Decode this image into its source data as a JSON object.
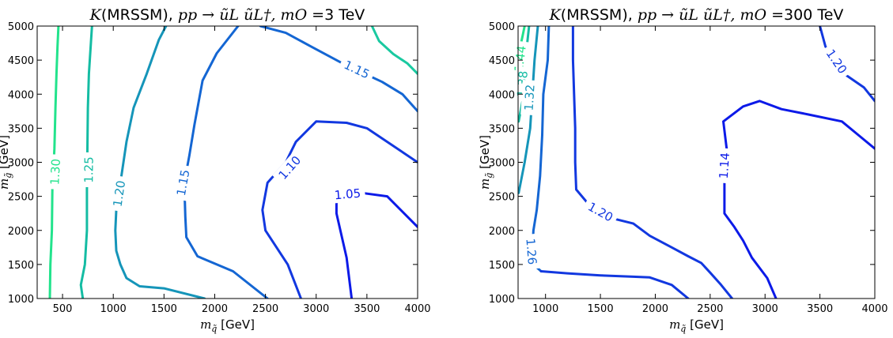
{
  "chart_data": [
    {
      "type": "contour",
      "title": {
        "k": "K",
        "model": "(MRSSM), ",
        "process": "pp → ũL ũL†",
        "mo": ", mO =",
        "mo_value": "3 TeV"
      },
      "xlabel": "m_q̃ [GeV]",
      "ylabel": "m_g̃ [GeV]",
      "xlim": [
        250,
        4000
      ],
      "ylim": [
        1000,
        5000
      ],
      "xticks": [
        500,
        1000,
        1500,
        2000,
        2500,
        3000,
        3500,
        4000
      ],
      "yticks": [
        1000,
        1500,
        2000,
        2500,
        3000,
        3500,
        4000,
        4500,
        5000
      ],
      "grid": false,
      "legend": "none",
      "contours": [
        {
          "level": "1.30",
          "color": "#22e38c",
          "points": [
            [
              375,
              1000
            ],
            [
              380,
              1500
            ],
            [
              395,
              2000
            ],
            [
              400,
              2600
            ],
            [
              420,
              3200
            ],
            [
              430,
              3800
            ],
            [
              440,
              4300
            ],
            [
              450,
              4700
            ],
            [
              460,
              5000
            ]
          ],
          "label": {
            "text": "1.30",
            "x": 430,
            "y": 2860
          }
        },
        {
          "level": "1.25",
          "color": "#14bca3",
          "points": [
            [
              700,
              1000
            ],
            [
              680,
              1200
            ],
            [
              720,
              1500
            ],
            [
              740,
              2000
            ],
            [
              740,
              2600
            ],
            [
              745,
              3200
            ],
            [
              750,
              3800
            ],
            [
              760,
              4300
            ],
            [
              790,
              5000
            ]
          ],
          "label": {
            "text": "1.25",
            "x": 760,
            "y": 2890
          }
        },
        {
          "level": "1.20",
          "color": "#1595b9",
          "points": [
            [
              1900,
              1000
            ],
            [
              1500,
              1150
            ],
            [
              1260,
              1180
            ],
            [
              1130,
              1300
            ],
            [
              1070,
              1500
            ],
            [
              1030,
              1700
            ],
            [
              1020,
              2000
            ],
            [
              1030,
              2300
            ],
            [
              1080,
              2800
            ],
            [
              1130,
              3300
            ],
            [
              1200,
              3800
            ],
            [
              1330,
              4300
            ],
            [
              1450,
              4800
            ],
            [
              1520,
              5000
            ]
          ],
          "label": {
            "text": "1.20",
            "x": 1060,
            "y": 2540
          }
        },
        {
          "level": "1.15",
          "color": "#1466d3",
          "points": [
            [
              2520,
              1000
            ],
            [
              2180,
              1400
            ],
            [
              1830,
              1620
            ],
            [
              1720,
              1900
            ],
            [
              1710,
              2200
            ],
            [
              1700,
              2700
            ],
            [
              1750,
              3100
            ],
            [
              1800,
              3550
            ],
            [
              1880,
              4200
            ],
            [
              2020,
              4600
            ],
            [
              2230,
              5000
            ]
          ],
          "label": {
            "text": "1.15",
            "x": 1690,
            "y": 2700
          }
        },
        {
          "level": "1.15",
          "color": "#1466d3",
          "points": [
            [
              2450,
              5000
            ],
            [
              2700,
              4900
            ],
            [
              2950,
              4700
            ],
            [
              3250,
              4460
            ],
            [
              3650,
              4180
            ],
            [
              3850,
              4000
            ],
            [
              4000,
              3750
            ]
          ],
          "label": {
            "text": "1.15",
            "x": 3400,
            "y": 4360
          }
        },
        {
          "level": "1.10",
          "color": "#1238e0",
          "points": [
            [
              2850,
              1000
            ],
            [
              2720,
              1500
            ],
            [
              2500,
              2000
            ],
            [
              2470,
              2300
            ],
            [
              2520,
              2700
            ],
            [
              2700,
              3000
            ],
            [
              2800,
              3300
            ],
            [
              3000,
              3600
            ],
            [
              3300,
              3580
            ],
            [
              3500,
              3500
            ],
            [
              4000,
              3000
            ]
          ],
          "label": {
            "text": "1.10",
            "x": 2740,
            "y": 2920
          }
        },
        {
          "level": "1.05",
          "color": "#0c1ae8",
          "points": [
            [
              3350,
              1000
            ],
            [
              3300,
              1600
            ],
            [
              3200,
              2250
            ],
            [
              3200,
              2520
            ],
            [
              3450,
              2550
            ],
            [
              3700,
              2500
            ],
            [
              4000,
              2050
            ]
          ],
          "label": {
            "text": "1.05",
            "x": 3310,
            "y": 2530
          }
        },
        {
          "level": "",
          "color": "#1ac9a0",
          "points": [
            [
              3550,
              5000
            ],
            [
              3620,
              4780
            ],
            [
              3760,
              4590
            ],
            [
              3900,
              4450
            ],
            [
              4000,
              4300
            ]
          ],
          "label": null
        }
      ]
    },
    {
      "type": "contour",
      "title": {
        "k": "K",
        "model": "(MRSSM), ",
        "process": "pp → ũL ũL†",
        "mo": ", mO =",
        "mo_value": "300 TeV"
      },
      "xlabel": "m_q̃ [GeV]",
      "ylabel": "m_g̃ [GeV]",
      "xlim": [
        750,
        4000
      ],
      "ylim": [
        1000,
        5000
      ],
      "xticks": [
        1000,
        1500,
        2000,
        2500,
        3000,
        3500,
        4000
      ],
      "yticks": [
        1000,
        1500,
        2000,
        2500,
        3000,
        3500,
        4000,
        4500,
        5000
      ],
      "grid": false,
      "legend": "none",
      "contours": [
        {
          "level": "1.44",
          "color": "#22e38c",
          "points": [
            [
              755,
              4500
            ],
            [
              770,
              4700
            ],
            [
              790,
              4850
            ],
            [
              810,
              5000
            ]
          ],
          "label": {
            "text": "1.44",
            "x": 770,
            "y": 4520
          }
        },
        {
          "level": "1.38",
          "color": "#14bca3",
          "points": [
            [
              755,
              3600
            ],
            [
              790,
              3900
            ],
            [
              810,
              4300
            ],
            [
              830,
              4700
            ],
            [
              850,
              5000
            ]
          ],
          "label": {
            "text": "1.38",
            "x": 790,
            "y": 4150
          }
        },
        {
          "level": "1.32",
          "color": "#1595b9",
          "points": [
            [
              755,
              2550
            ],
            [
              810,
              3000
            ],
            [
              860,
              3500
            ],
            [
              880,
              4000
            ],
            [
              900,
              4500
            ],
            [
              930,
              5000
            ]
          ],
          "label": {
            "text": "1.32",
            "x": 855,
            "y": 3950
          }
        },
        {
          "level": "1.26",
          "color": "#1466d3",
          "points": [
            [
              1030,
              5000
            ],
            [
              1020,
              4500
            ],
            [
              980,
              4000
            ],
            [
              970,
              3400
            ],
            [
              950,
              2800
            ],
            [
              920,
              2300
            ],
            [
              890,
              2000
            ],
            [
              880,
              1700
            ],
            [
              890,
              1500
            ],
            [
              960,
              1400
            ]
          ],
          "label": {
            "text": "1.26",
            "x": 870,
            "y": 1690
          }
        },
        {
          "level": "1.20",
          "color": "#1238e0",
          "points": [
            [
              1250,
              5000
            ],
            [
              1250,
              4500
            ],
            [
              1260,
              4000
            ],
            [
              1270,
              3500
            ],
            [
              1270,
              3000
            ],
            [
              1280,
              2600
            ],
            [
              1410,
              2350
            ],
            [
              1600,
              2180
            ],
            [
              1800,
              2100
            ],
            [
              1950,
              1920
            ],
            [
              2150,
              1750
            ],
            [
              2300,
              1620
            ],
            [
              2420,
              1520
            ],
            [
              2500,
              1380
            ],
            [
              2600,
              1200
            ],
            [
              2700,
              1000
            ]
          ],
          "label": {
            "text": "1.20",
            "x": 1500,
            "y": 2270
          }
        },
        {
          "level": "1.20",
          "color": "#1238e0",
          "points": [
            [
              3500,
              5000
            ],
            [
              3550,
              4700
            ],
            [
              3720,
              4300
            ],
            [
              3900,
              4100
            ],
            [
              4000,
              3900
            ]
          ],
          "label": {
            "text": "1.20",
            "x": 3650,
            "y": 4480
          }
        },
        {
          "level": "",
          "color": "#1238e0",
          "points": [
            [
              960,
              1400
            ],
            [
              1200,
              1370
            ],
            [
              1500,
              1340
            ],
            [
              1800,
              1320
            ],
            [
              1950,
              1310
            ],
            [
              2150,
              1200
            ],
            [
              2300,
              1000
            ]
          ],
          "label": null
        },
        {
          "level": "1.14",
          "color": "#0c1ae8",
          "points": [
            [
              3100,
              1000
            ],
            [
              3020,
              1300
            ],
            [
              2880,
              1600
            ],
            [
              2800,
              1850
            ],
            [
              2720,
              2050
            ],
            [
              2630,
              2250
            ],
            [
              2630,
              2700
            ],
            [
              2650,
              3200
            ],
            [
              2620,
              3600
            ],
            [
              2800,
              3820
            ],
            [
              2950,
              3900
            ],
            [
              3150,
              3780
            ],
            [
              3400,
              3700
            ],
            [
              3700,
              3600
            ],
            [
              3850,
              3400
            ],
            [
              4000,
              3200
            ]
          ],
          "label": {
            "text": "1.14",
            "x": 2630,
            "y": 2950
          }
        }
      ]
    }
  ]
}
